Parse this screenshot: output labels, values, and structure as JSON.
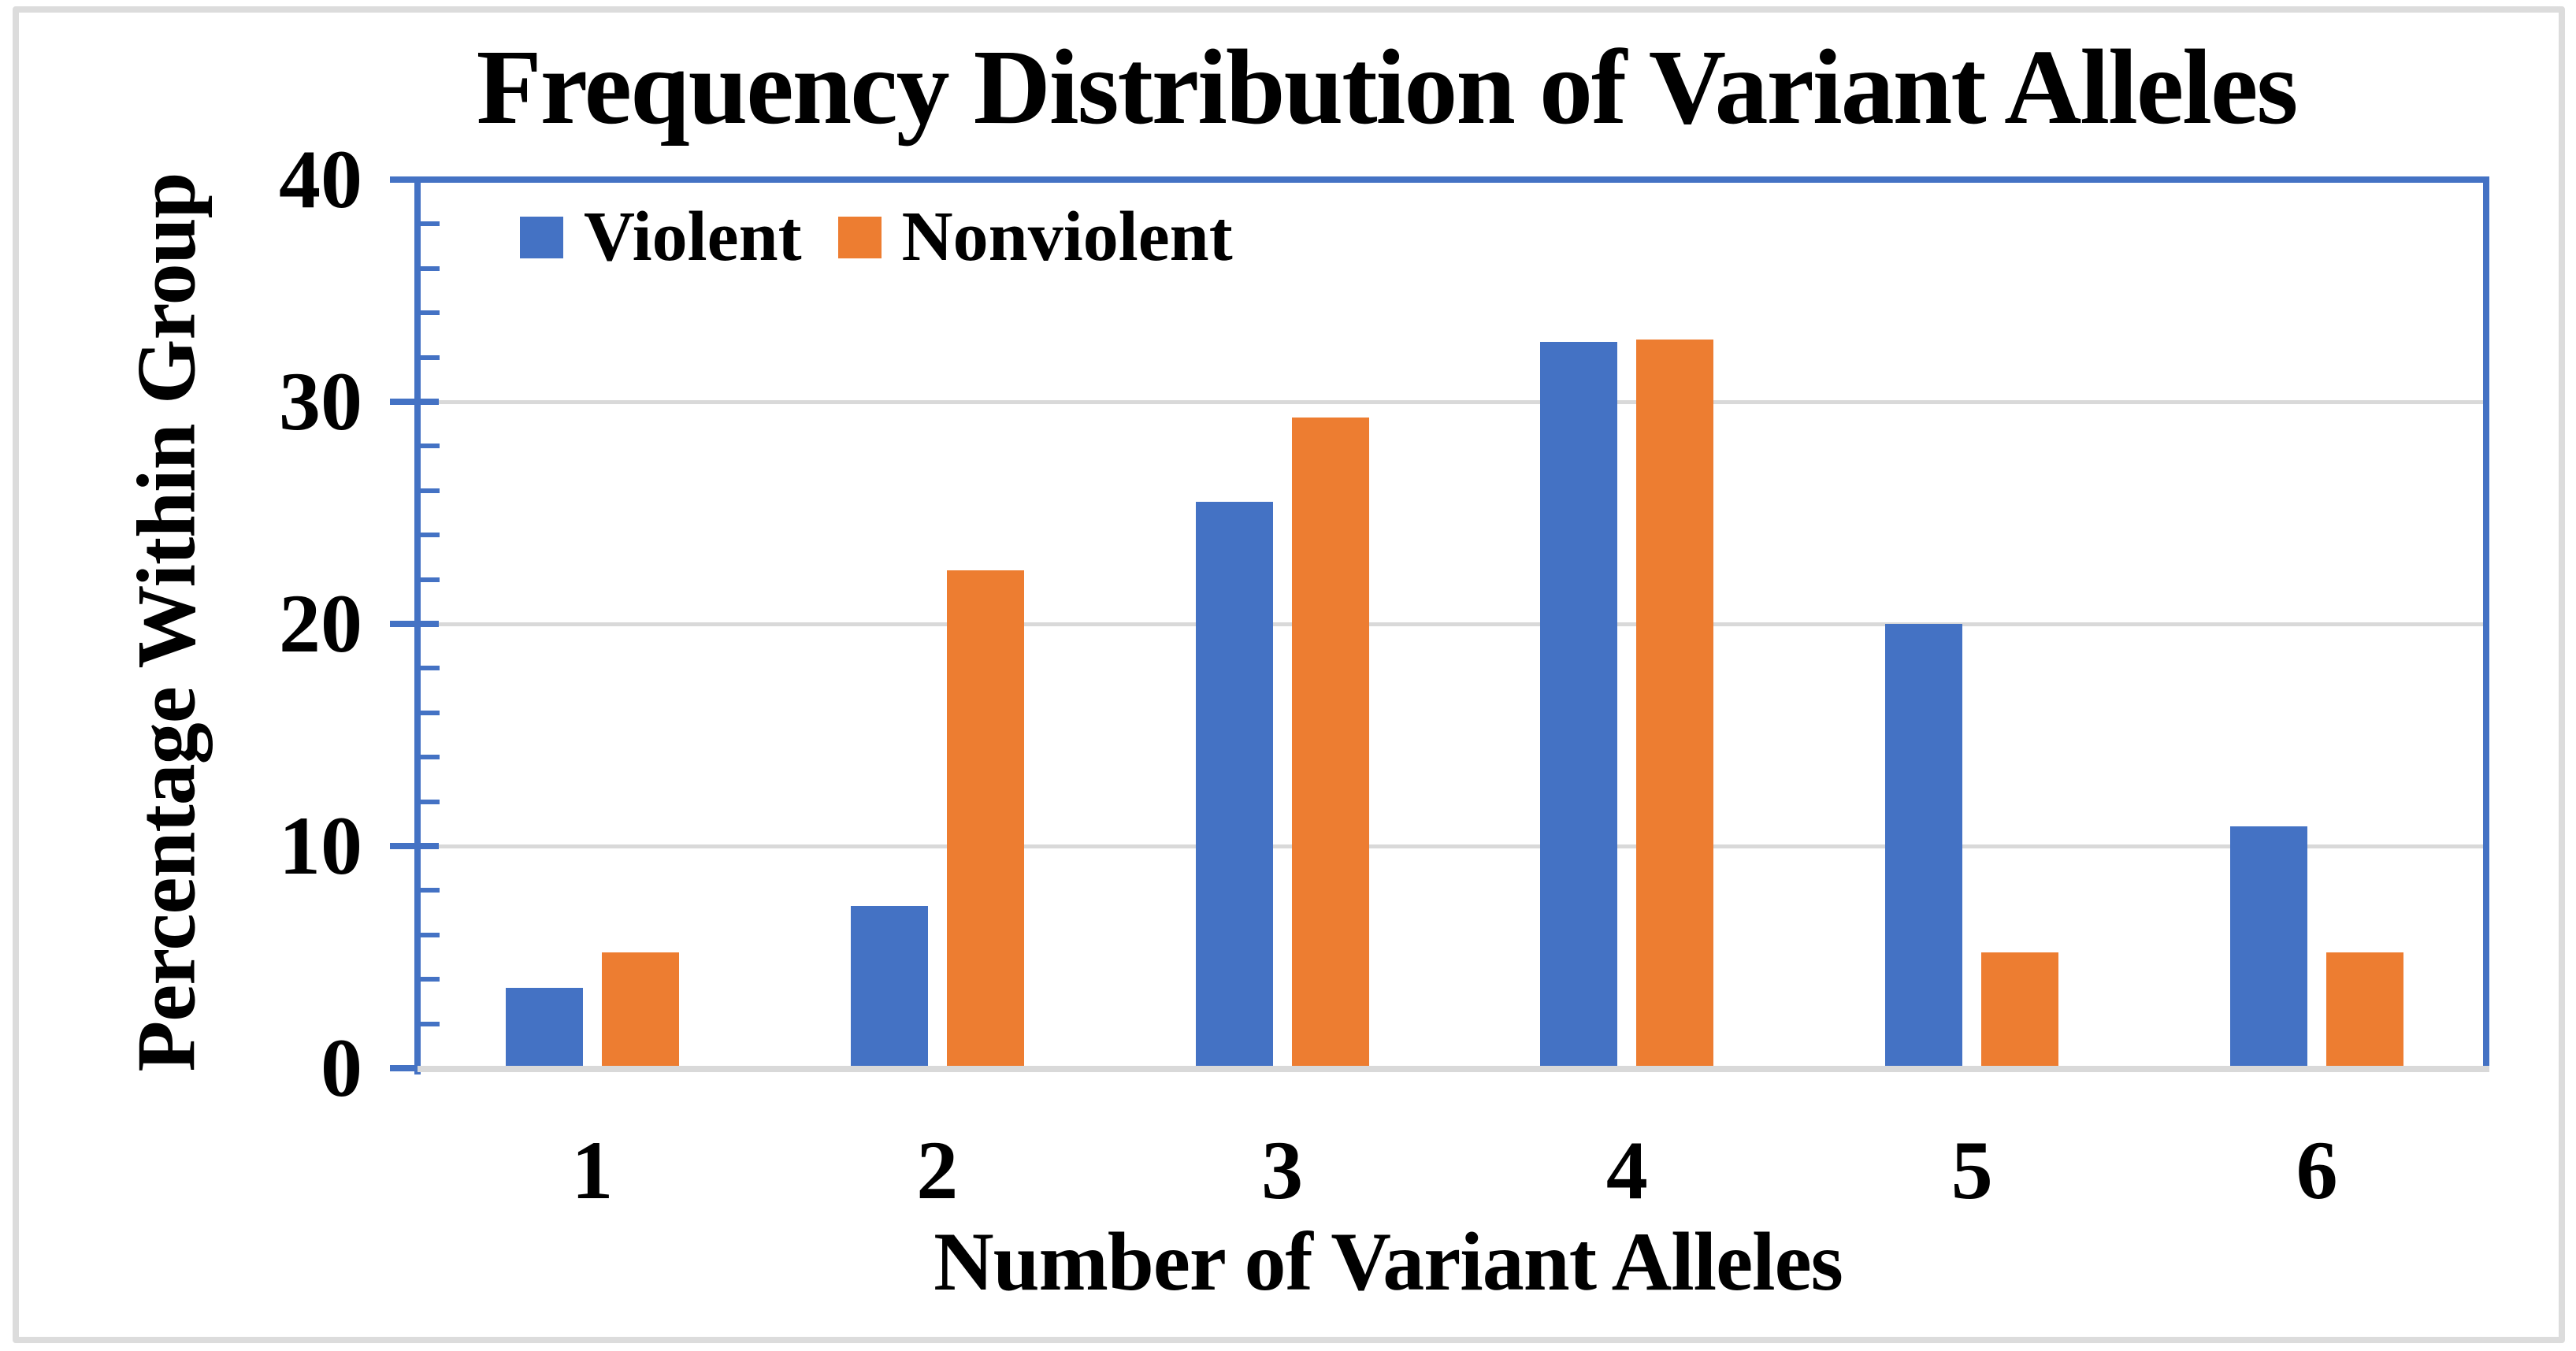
{
  "figure": {
    "title": "Frequency Distribution of Variant Alleles",
    "x_axis_title": "Number of Variant Alleles",
    "y_axis_title": "Percentage Within Group"
  },
  "legend": {
    "items": [
      {
        "label": "Violent",
        "color": "#4472C4"
      },
      {
        "label": "Nonviolent",
        "color": "#ED7D31"
      }
    ]
  },
  "chart_data": {
    "type": "bar",
    "title": "Frequency Distribution of Variant Alleles",
    "xlabel": "Number of Variant Alleles",
    "ylabel": "Percentage Within Group",
    "categories": [
      "1",
      "2",
      "3",
      "4",
      "5",
      "6"
    ],
    "series": [
      {
        "name": "Violent",
        "color": "#4472C4",
        "values": [
          3.6,
          7.3,
          25.5,
          32.7,
          20.0,
          10.9
        ]
      },
      {
        "name": "Nonviolent",
        "color": "#ED7D31",
        "values": [
          5.2,
          22.4,
          29.3,
          32.8,
          5.2,
          5.2
        ]
      }
    ],
    "ylim": [
      0,
      40
    ],
    "yticks": [
      0,
      10,
      20,
      30,
      40
    ],
    "minor_tick_step": 2,
    "grid": true,
    "legend_position": "inside-top-left"
  },
  "colors": {
    "axis": "#4472C4",
    "gridline": "#D9D9D9",
    "baseline": "#D9D9D9",
    "border": "#DCDCDC",
    "text": "#000000",
    "background": "#FFFFFF"
  }
}
